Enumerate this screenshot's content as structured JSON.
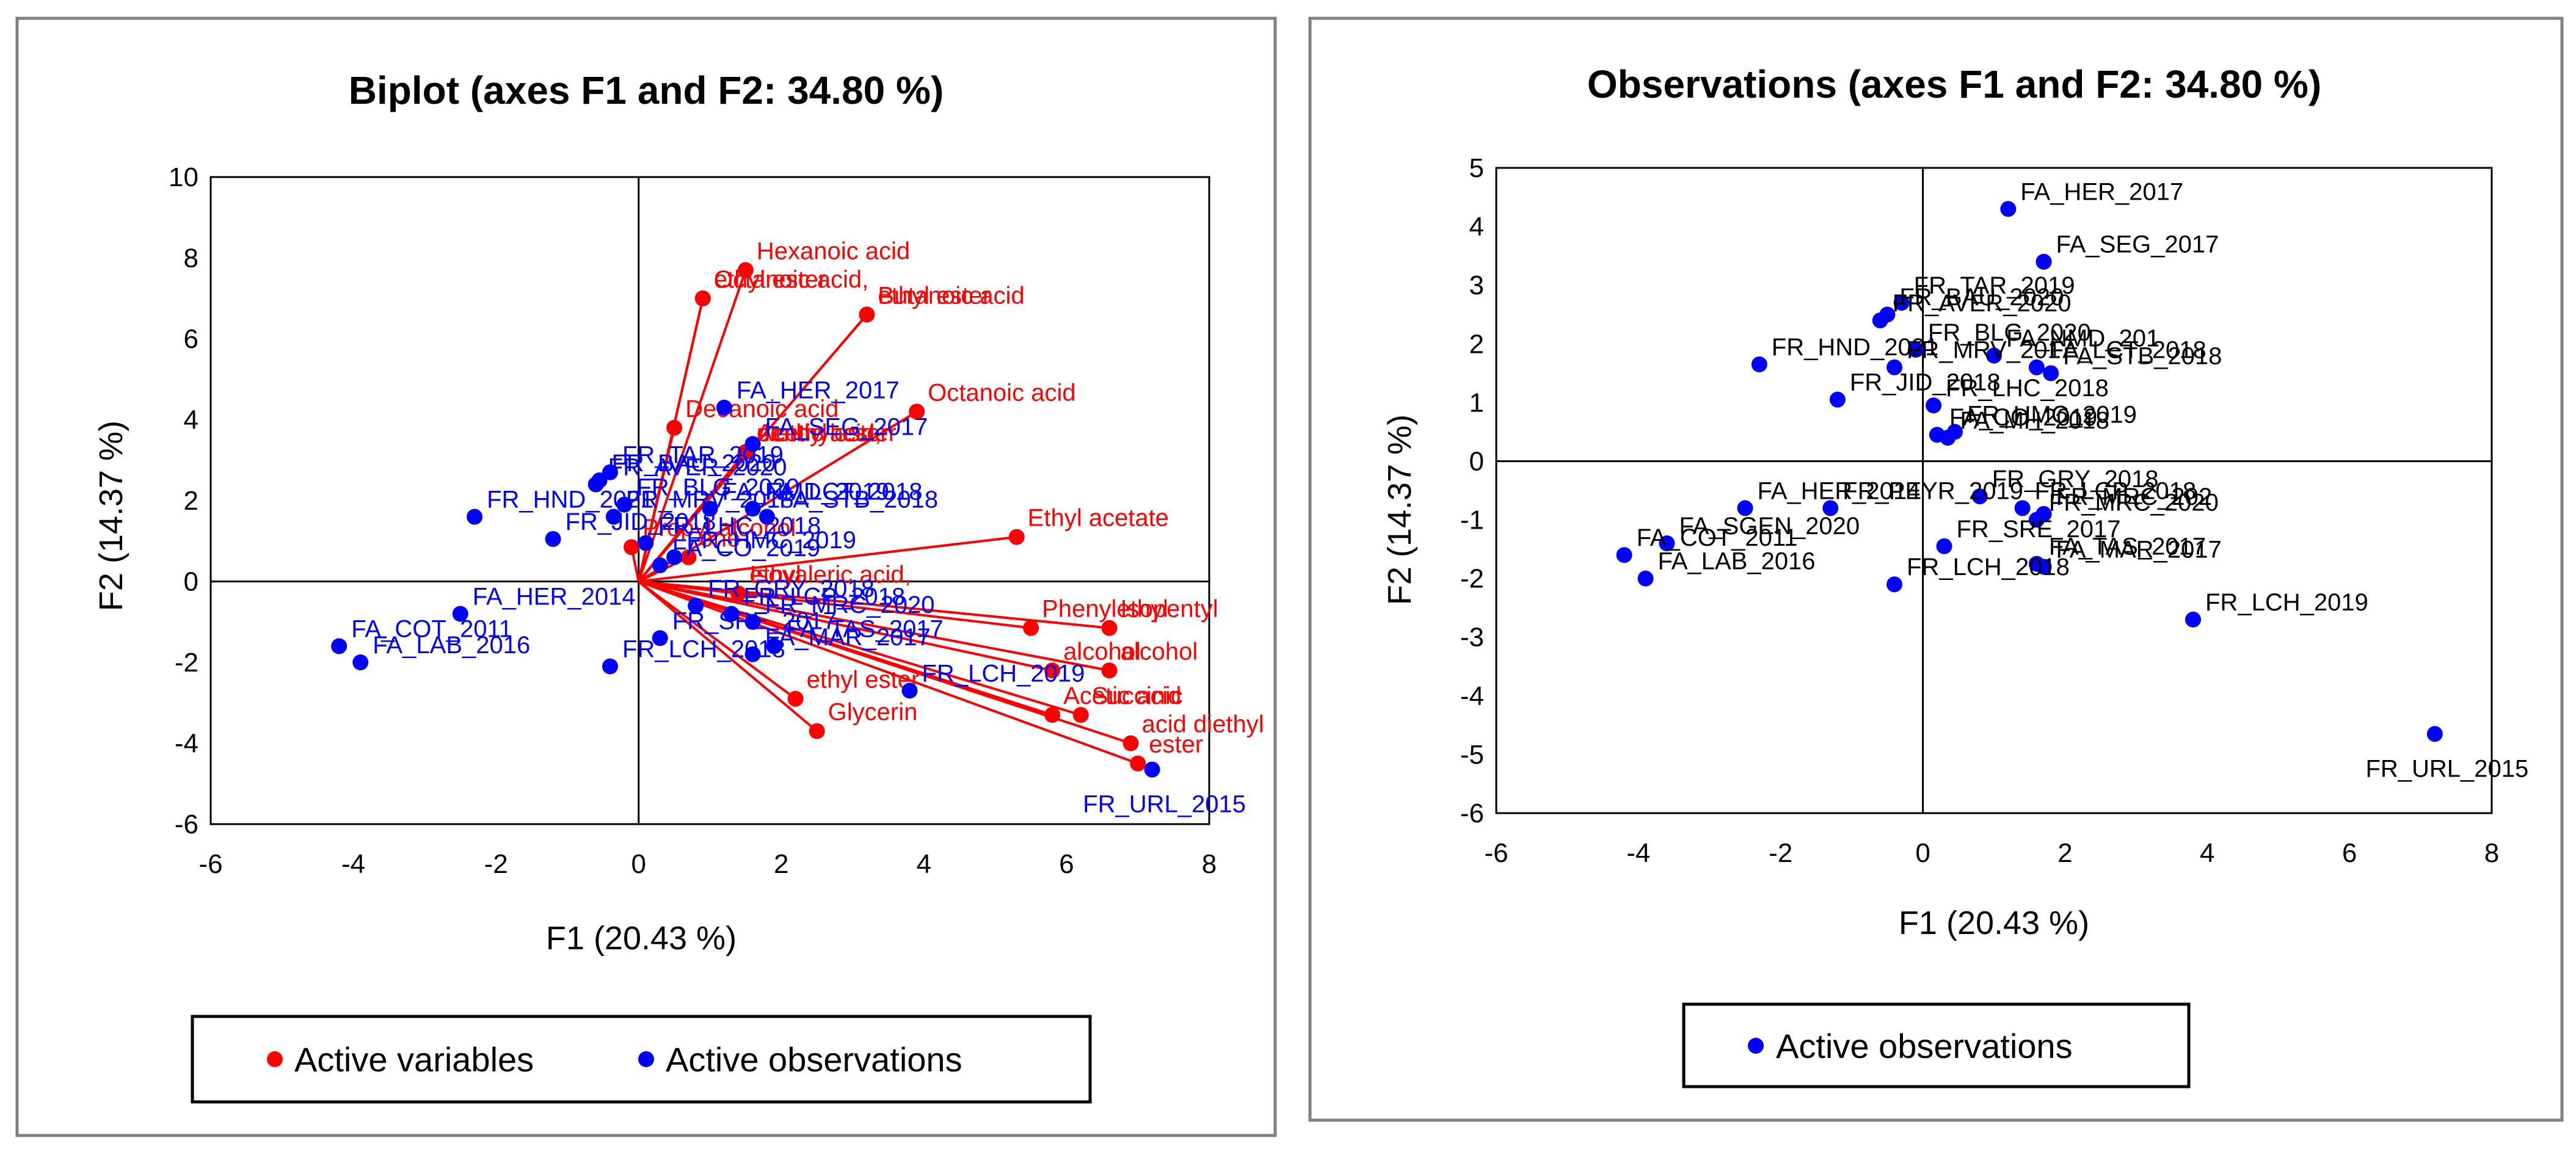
{
  "colors": {
    "variables": "#ff0000",
    "observations": "#0000ff",
    "axes": "#000000",
    "frame": "#808080"
  },
  "chart_data": [
    {
      "type": "scatter",
      "title": "Biplot (axes F1 and F2: 34.80 %)",
      "xlabel": "F1 (20.43 %)",
      "ylabel": "F2 (14.37 %)",
      "xlim": [
        -6,
        8
      ],
      "ylim": [
        -6,
        10
      ],
      "xticks": [
        "-6",
        "-4",
        "-2",
        "0",
        "2",
        "4",
        "6",
        "8"
      ],
      "yticks": [
        "-6",
        "-4",
        "-2",
        "0",
        "2",
        "4",
        "6",
        "8",
        "10"
      ],
      "grid": false,
      "legend": {
        "placement": "bottom",
        "entries": [
          "Active variables",
          "Active observations"
        ]
      },
      "variables": [
        {
          "label": "Hexanoic acid",
          "x": 1.5,
          "y": 7.7
        },
        {
          "label": "Octanoic acid,",
          "x": 0.9,
          "y": 7.0
        },
        {
          "label": "ethyl ester",
          "x": 0.9,
          "y": 7.0
        },
        {
          "label": "Butanoic acid",
          "x": 3.2,
          "y": 6.6
        },
        {
          "label": "ethyl ester",
          "x": 3.2,
          "y": 6.6
        },
        {
          "label": "Octanoic acid",
          "x": 3.9,
          "y": 4.2
        },
        {
          "label": "Decanoic acid",
          "x": 0.5,
          "y": 3.8
        },
        {
          "label": "Acetic acid,",
          "x": 1.5,
          "y": 3.2
        },
        {
          "label": "diethyl ester",
          "x": 1.5,
          "y": 3.2
        },
        {
          "label": "penthyl ester",
          "x": 1.5,
          "y": 3.2
        },
        {
          "label": "Ethyl acetate",
          "x": 5.3,
          "y": 1.1
        },
        {
          "label": "Propyl alcohol",
          "x": -0.1,
          "y": 0.85
        },
        {
          "label": "one",
          "x": 0.7,
          "y": 0.6
        },
        {
          "label": "Isovaleric acid,",
          "x": 1.4,
          "y": -0.3
        },
        {
          "label": "ethyl",
          "x": 1.4,
          "y": -0.3
        },
        {
          "label": "Phenylethyl",
          "x": 5.5,
          "y": -1.15
        },
        {
          "label": "Isopentyl",
          "x": 6.6,
          "y": -1.15
        },
        {
          "label": "alcohol",
          "x": 5.8,
          "y": -2.2
        },
        {
          "label": "alcohol",
          "x": 6.6,
          "y": -2.2
        },
        {
          "label": "Acetic acid",
          "x": 5.8,
          "y": -3.3
        },
        {
          "label": "Succinic",
          "x": 6.2,
          "y": -3.3
        },
        {
          "label": "acid diethyl",
          "x": 6.9,
          "y": -4.0
        },
        {
          "label": "ester",
          "x": 7.0,
          "y": -4.5
        },
        {
          "label": "ethyl ester",
          "x": 2.2,
          "y": -2.9
        },
        {
          "label": "Glycerin",
          "x": 2.5,
          "y": -3.7
        }
      ],
      "observations": [
        {
          "label": "FA_HER_2017",
          "x": 1.2,
          "y": 4.3
        },
        {
          "label": "FA_SEG_2017",
          "x": 1.6,
          "y": 3.4
        },
        {
          "label": "FA_NMD_2019",
          "x": 1.0,
          "y": 1.8
        },
        {
          "label": "FA_LCT_2018",
          "x": 1.6,
          "y": 1.8
        },
        {
          "label": "FA_STB_2018",
          "x": 1.8,
          "y": 1.6
        },
        {
          "label": "FR_TAR_2019",
          "x": -0.4,
          "y": 2.7
        },
        {
          "label": "FR_BAU_2020",
          "x": -0.55,
          "y": 2.5
        },
        {
          "label": "FR_AVER_2020",
          "x": -0.6,
          "y": 2.4
        },
        {
          "label": "FR_BLG_2020",
          "x": -0.2,
          "y": 1.9
        },
        {
          "label": "FR_HND_2021",
          "x": -2.3,
          "y": 1.6
        },
        {
          "label": "FR_MRV_2018",
          "x": -0.35,
          "y": 1.6
        },
        {
          "label": "FR_JID_2018",
          "x": -1.2,
          "y": 1.05
        },
        {
          "label": "FR_LHC_2018",
          "x": 0.1,
          "y": 0.95
        },
        {
          "label": "FR_HMC_2019",
          "x": 0.5,
          "y": 0.6
        },
        {
          "label": "FA_CO_2019",
          "x": 0.3,
          "y": 0.4
        },
        {
          "label": "FR_GRY_2018",
          "x": 0.8,
          "y": -0.6
        },
        {
          "label": "FR_LCP_2018",
          "x": 1.3,
          "y": -0.8
        },
        {
          "label": "FR_MRC_2020",
          "x": 1.6,
          "y": -1.0
        },
        {
          "label": "FR_SRE_2017",
          "x": 0.3,
          "y": -1.4
        },
        {
          "label": "FA_MAR_2017",
          "x": 1.6,
          "y": -1.8
        },
        {
          "label": "FA_TAS_2017",
          "x": 1.9,
          "y": -1.6
        },
        {
          "label": "FR_LCH_2019",
          "x": 3.8,
          "y": -2.7
        },
        {
          "label": "FR_URL_2015",
          "x": 7.2,
          "y": -4.65
        },
        {
          "label": "FR_LCH_2018",
          "x": -0.4,
          "y": -2.1
        },
        {
          "label": "FA_HER_2014",
          "x": -2.5,
          "y": -0.8
        },
        {
          "label": "FA_LAB_2016",
          "x": -3.9,
          "y": -2.0
        },
        {
          "label": "FA_COT_2011",
          "x": -4.2,
          "y": -1.6
        }
      ]
    },
    {
      "type": "scatter",
      "title": "Observations (axes F1 and F2: 34.80 %)",
      "xlabel": "F1 (20.43 %)",
      "ylabel": "F2 (14.37 %)",
      "xlim": [
        -6,
        8
      ],
      "ylim": [
        -6,
        5
      ],
      "xticks": [
        "-6",
        "-4",
        "-2",
        "0",
        "2",
        "4",
        "6",
        "8"
      ],
      "yticks": [
        "-6",
        "-5",
        "-4",
        "-3",
        "-2",
        "-1",
        "0",
        "1",
        "2",
        "3",
        "4",
        "5"
      ],
      "grid": false,
      "legend": {
        "placement": "bottom",
        "entries": [
          "Active observations"
        ]
      },
      "observations": [
        {
          "label": "FA_HER_2017",
          "x": 1.2,
          "y": 4.3
        },
        {
          "label": "FA_SEG_2017",
          "x": 1.7,
          "y": 3.4
        },
        {
          "label": "FA_NMD_201",
          "x": 1.0,
          "y": 1.8
        },
        {
          "label": "FA_LCT_2018",
          "x": 1.6,
          "y": 1.6
        },
        {
          "label": "FA_STB_2018",
          "x": 1.8,
          "y": 1.5
        },
        {
          "label": "FR_TAR_2019",
          "x": -0.3,
          "y": 2.7
        },
        {
          "label": "FR_BAU_2020",
          "x": -0.5,
          "y": 2.5
        },
        {
          "label": "FR_AVER_2020",
          "x": -0.6,
          "y": 2.4
        },
        {
          "label": "FR_BLG_2020",
          "x": -0.1,
          "y": 1.9
        },
        {
          "label": "FR_HND_2021",
          "x": -2.3,
          "y": 1.65
        },
        {
          "label": "FR_MRV_201",
          "x": -0.4,
          "y": 1.6
        },
        {
          "label": "FR_JID_2018",
          "x": -1.2,
          "y": 1.05
        },
        {
          "label": "FR_LHC_2018",
          "x": 0.15,
          "y": 0.95
        },
        {
          "label": "FA_MH_2018",
          "x": 0.35,
          "y": 0.4
        },
        {
          "label": "FR_HMC_2019",
          "x": 0.45,
          "y": 0.5
        },
        {
          "label": "FA_CO_2019",
          "x": 0.2,
          "y": 0.45
        },
        {
          "label": "FR_GRY_2018",
          "x": 0.8,
          "y": -0.6
        },
        {
          "label": "FR_LCP_2018",
          "x": 1.4,
          "y": -0.8
        },
        {
          "label": "FR_MRC_202",
          "x": 1.7,
          "y": -0.9
        },
        {
          "label": "FR_MRC_2020",
          "x": 1.6,
          "y": -1.0
        },
        {
          "label": "FR_SRE_2017",
          "x": 0.3,
          "y": -1.45
        },
        {
          "label": "FA_TAS_2017",
          "x": 1.6,
          "y": -1.75
        },
        {
          "label": "FA_MAR_2017",
          "x": 1.7,
          "y": -1.8
        },
        {
          "label": "FR_LCH_2019",
          "x": 3.8,
          "y": -2.7
        },
        {
          "label": "FR_URL_2015",
          "x": 7.2,
          "y": -4.65
        },
        {
          "label": "FR_LCH_2018",
          "x": -0.4,
          "y": -2.1
        },
        {
          "label": "FA_HER_2014",
          "x": -2.5,
          "y": -0.8
        },
        {
          "label": "FR_PEYR_2019",
          "x": -1.3,
          "y": -0.8
        },
        {
          "label": "FA_LAB_2016",
          "x": -3.9,
          "y": -2.0
        },
        {
          "label": "FA_COT_2011",
          "x": -4.2,
          "y": -1.6
        },
        {
          "label": "FA_SGEN_2020",
          "x": -3.6,
          "y": -1.4
        }
      ]
    }
  ]
}
